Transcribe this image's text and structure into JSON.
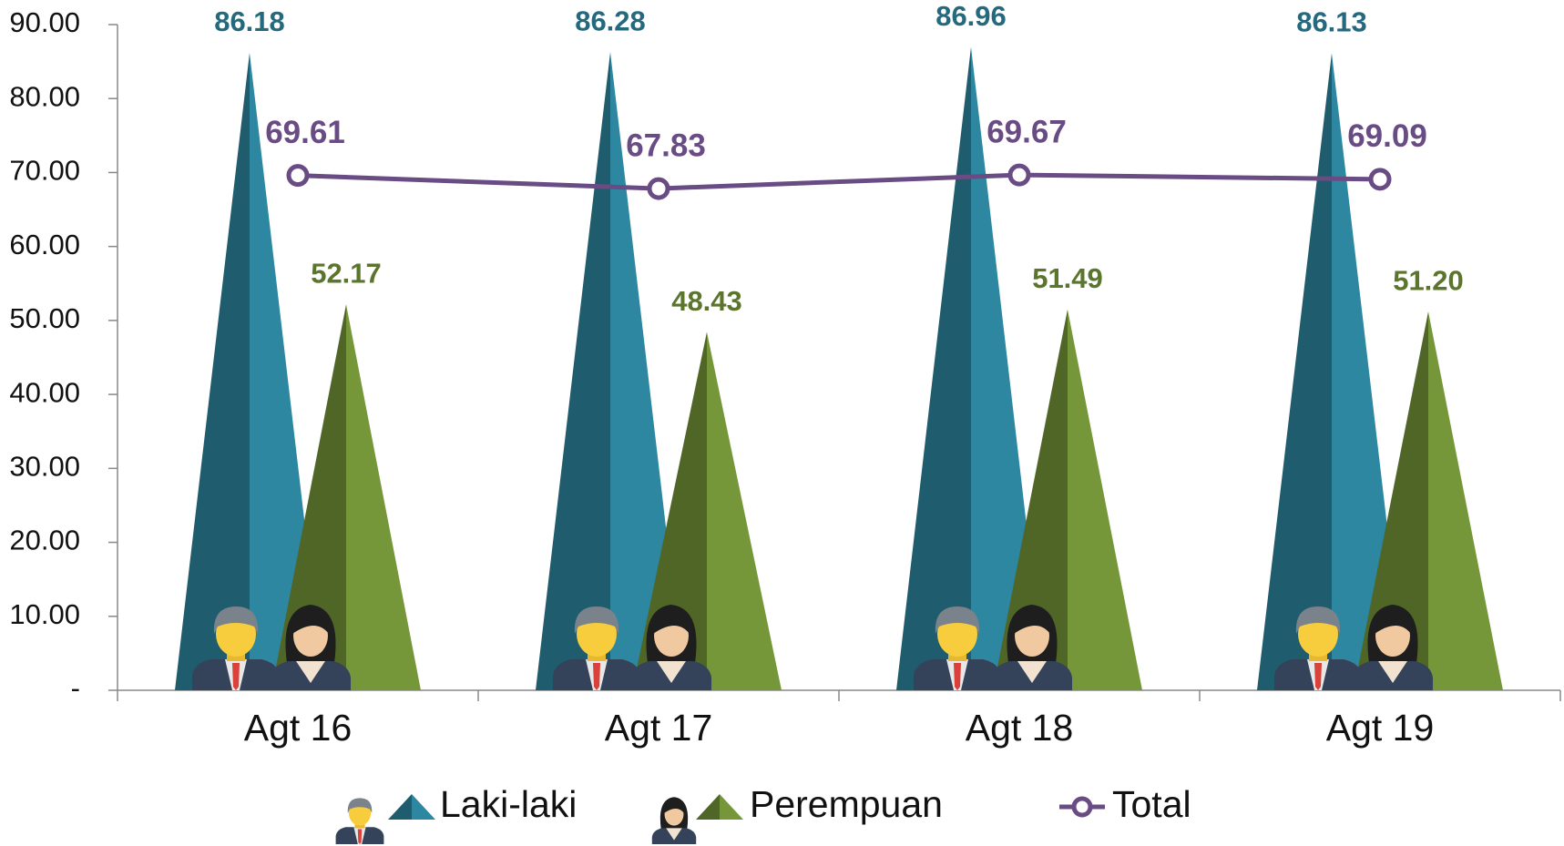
{
  "chart_data": {
    "type": "bar",
    "categories": [
      "Agt 16",
      "Agt 17",
      "Agt 18",
      "Agt 19"
    ],
    "series": [
      {
        "name": "Laki-laki",
        "type": "bar",
        "color": "#2e87a0",
        "values": [
          86.18,
          86.28,
          86.96,
          86.13
        ],
        "value_labels": [
          "86.18",
          "86.28",
          "86.96",
          "86.13"
        ]
      },
      {
        "name": "Perempuan",
        "type": "bar",
        "color": "#76963a",
        "values": [
          52.17,
          48.43,
          51.49,
          51.2
        ],
        "value_labels": [
          "52.17",
          "48.43",
          "51.49",
          "51.20"
        ]
      },
      {
        "name": "Total",
        "type": "line",
        "color": "#6a4c84",
        "values": [
          69.61,
          67.83,
          69.67,
          69.09
        ],
        "value_labels": [
          "69.61",
          "67.83",
          "69.67",
          "69.09"
        ]
      }
    ],
    "ylim": [
      0,
      90
    ],
    "yticks": [
      {
        "value": 0,
        "label": "-"
      },
      {
        "value": 10,
        "label": "10.00"
      },
      {
        "value": 20,
        "label": "20.00"
      },
      {
        "value": 30,
        "label": "30.00"
      },
      {
        "value": 40,
        "label": "40.00"
      },
      {
        "value": 50,
        "label": "50.00"
      },
      {
        "value": 60,
        "label": "60.00"
      },
      {
        "value": 70,
        "label": "70.00"
      },
      {
        "value": 80,
        "label": "80.00"
      },
      {
        "value": 90,
        "label": "90.00"
      }
    ],
    "grid": false
  }
}
